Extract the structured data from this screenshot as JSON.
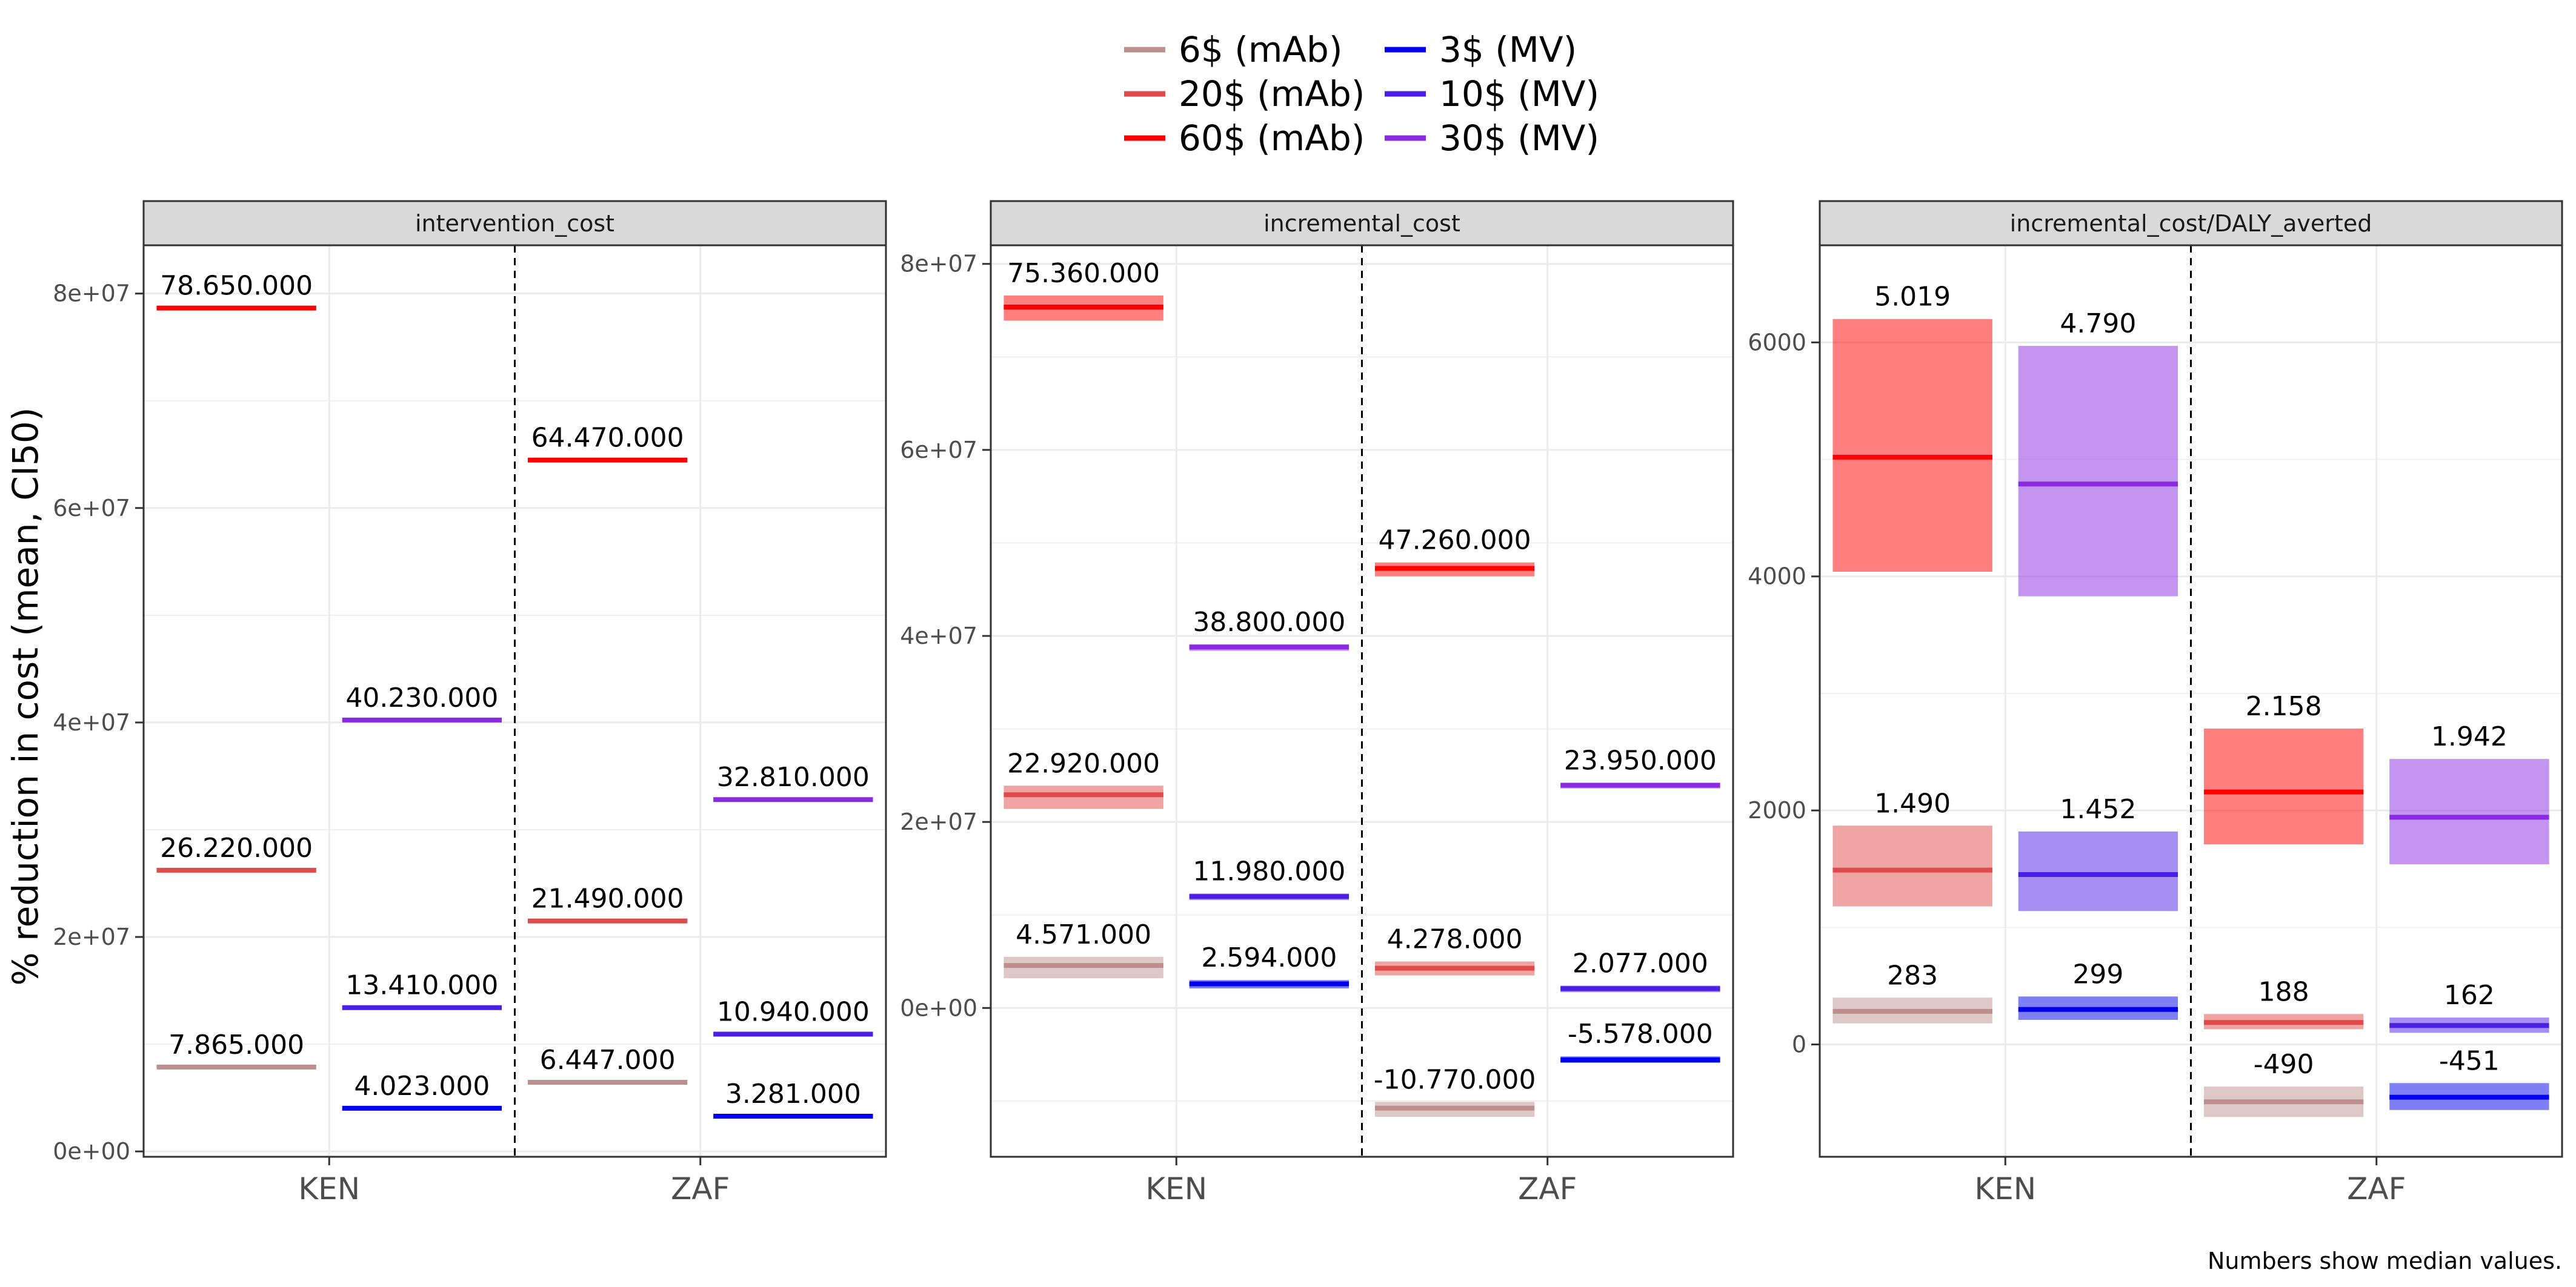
{
  "chart_data": {
    "type": "crossbar",
    "ylabel": "% reduction in cost (mean, CI50)",
    "caption": "Numbers show median values.",
    "categories": [
      "KEN",
      "ZAF"
    ],
    "legend": {
      "position": "top",
      "entries": [
        {
          "name": "6$ (mAb)",
          "color": "#bc8f8f"
        },
        {
          "name": "20$ (mAb)",
          "color": "#e04a4a"
        },
        {
          "name": "60$ (mAb)",
          "color": "#ff0000"
        },
        {
          "name": "3$ (MV)",
          "color": "#0000ee"
        },
        {
          "name": "10$ (MV)",
          "color": "#4b1ee6"
        },
        {
          "name": "30$ (MV)",
          "color": "#8a2be2"
        }
      ]
    },
    "panels": [
      {
        "title": "intervention_cost",
        "ylim": [
          -500000,
          84500000
        ],
        "yticks": [
          0,
          20000000,
          40000000,
          60000000,
          80000000
        ],
        "ytick_labels": [
          "0e+00",
          "2e+07",
          "4e+07",
          "6e+07",
          "8e+07"
        ],
        "bars": [
          {
            "category": "KEN",
            "group": "mAb",
            "series": "60$ (mAb)",
            "median": 78650000,
            "low": 78650000,
            "high": 78650000,
            "label": "78.650.000"
          },
          {
            "category": "KEN",
            "group": "mAb",
            "series": "20$ (mAb)",
            "median": 26220000,
            "low": 26220000,
            "high": 26220000,
            "label": "26.220.000"
          },
          {
            "category": "KEN",
            "group": "mAb",
            "series": "6$ (mAb)",
            "median": 7865000,
            "low": 7865000,
            "high": 7865000,
            "label": "7.865.000"
          },
          {
            "category": "KEN",
            "group": "MV",
            "series": "30$ (MV)",
            "median": 40230000,
            "low": 40230000,
            "high": 40230000,
            "label": "40.230.000"
          },
          {
            "category": "KEN",
            "group": "MV",
            "series": "10$ (MV)",
            "median": 13410000,
            "low": 13410000,
            "high": 13410000,
            "label": "13.410.000"
          },
          {
            "category": "KEN",
            "group": "MV",
            "series": "3$ (MV)",
            "median": 4023000,
            "low": 4023000,
            "high": 4023000,
            "label": "4.023.000"
          },
          {
            "category": "ZAF",
            "group": "mAb",
            "series": "60$ (mAb)",
            "median": 64470000,
            "low": 64470000,
            "high": 64470000,
            "label": "64.470.000"
          },
          {
            "category": "ZAF",
            "group": "mAb",
            "series": "20$ (mAb)",
            "median": 21490000,
            "low": 21490000,
            "high": 21490000,
            "label": "21.490.000"
          },
          {
            "category": "ZAF",
            "group": "mAb",
            "series": "6$ (mAb)",
            "median": 6447000,
            "low": 6447000,
            "high": 6447000,
            "label": "6.447.000"
          },
          {
            "category": "ZAF",
            "group": "MV",
            "series": "30$ (MV)",
            "median": 32810000,
            "low": 32810000,
            "high": 32810000,
            "label": "32.810.000"
          },
          {
            "category": "ZAF",
            "group": "MV",
            "series": "10$ (MV)",
            "median": 10940000,
            "low": 10940000,
            "high": 10940000,
            "label": "10.940.000"
          },
          {
            "category": "ZAF",
            "group": "MV",
            "series": "3$ (MV)",
            "median": 3281000,
            "low": 3281000,
            "high": 3281000,
            "label": "3.281.000"
          }
        ]
      },
      {
        "title": "incremental_cost",
        "ylim": [
          -16000000,
          82000000
        ],
        "yticks": [
          0,
          20000000,
          40000000,
          60000000,
          80000000
        ],
        "ytick_labels": [
          "0e+00",
          "2e+07",
          "4e+07",
          "6e+07",
          "8e+07"
        ],
        "bars": [
          {
            "category": "KEN",
            "group": "mAb",
            "series": "60$ (mAb)",
            "median": 75360000,
            "low": 73900000,
            "high": 76600000,
            "label": "75.360.000"
          },
          {
            "category": "KEN",
            "group": "mAb",
            "series": "20$ (mAb)",
            "median": 22920000,
            "low": 21400000,
            "high": 23900000,
            "label": "22.920.000"
          },
          {
            "category": "KEN",
            "group": "mAb",
            "series": "6$ (mAb)",
            "median": 4571000,
            "low": 3200000,
            "high": 5500000,
            "label": "4.571.000"
          },
          {
            "category": "KEN",
            "group": "MV",
            "series": "30$ (MV)",
            "median": 38800000,
            "low": 38400000,
            "high": 39100000,
            "label": "38.800.000"
          },
          {
            "category": "KEN",
            "group": "MV",
            "series": "10$ (MV)",
            "median": 11980000,
            "low": 11600000,
            "high": 12300000,
            "label": "11.980.000"
          },
          {
            "category": "KEN",
            "group": "MV",
            "series": "3$ (MV)",
            "median": 2594000,
            "low": 2100000,
            "high": 3000000,
            "label": "2.594.000"
          },
          {
            "category": "ZAF",
            "group": "mAb",
            "series": "60$ (mAb)",
            "median": 47260000,
            "low": 46400000,
            "high": 47900000,
            "label": "47.260.000"
          },
          {
            "category": "ZAF",
            "group": "mAb",
            "series": "20$ (mAb)",
            "median": 4278000,
            "low": 3500000,
            "high": 5000000,
            "label": "4.278.000"
          },
          {
            "category": "ZAF",
            "group": "mAb",
            "series": "6$ (mAb)",
            "median": -10770000,
            "low": -11700000,
            "high": -10100000,
            "label": "-10.770.000"
          },
          {
            "category": "ZAF",
            "group": "MV",
            "series": "30$ (MV)",
            "median": 23950000,
            "low": 23600000,
            "high": 24200000,
            "label": "23.950.000"
          },
          {
            "category": "ZAF",
            "group": "MV",
            "series": "10$ (MV)",
            "median": 2077000,
            "low": 1700000,
            "high": 2400000,
            "label": "2.077.000"
          },
          {
            "category": "ZAF",
            "group": "MV",
            "series": "3$ (MV)",
            "median": -5578000,
            "low": -5900000,
            "high": -5200000,
            "label": "-5.578.000"
          }
        ]
      },
      {
        "title": "incremental_cost/DALY_averted",
        "ylim": [
          -960,
          6830
        ],
        "yticks": [
          0,
          2000,
          4000,
          6000
        ],
        "ytick_labels": [
          "0",
          "2000",
          "4000",
          "6000"
        ],
        "bars": [
          {
            "category": "KEN",
            "group": "mAb",
            "series": "60$ (mAb)",
            "median": 5019,
            "low": 4040,
            "high": 6200,
            "label": "5.019"
          },
          {
            "category": "KEN",
            "group": "mAb",
            "series": "20$ (mAb)",
            "median": 1490,
            "low": 1180,
            "high": 1870,
            "label": "1.490"
          },
          {
            "category": "KEN",
            "group": "mAb",
            "series": "6$ (mAb)",
            "median": 283,
            "low": 180,
            "high": 400,
            "label": "283"
          },
          {
            "category": "KEN",
            "group": "MV",
            "series": "30$ (MV)",
            "median": 4790,
            "low": 3830,
            "high": 5970,
            "label": "4.790"
          },
          {
            "category": "KEN",
            "group": "MV",
            "series": "10$ (MV)",
            "median": 1452,
            "low": 1140,
            "high": 1820,
            "label": "1.452"
          },
          {
            "category": "KEN",
            "group": "MV",
            "series": "3$ (MV)",
            "median": 299,
            "low": 210,
            "high": 410,
            "label": "299"
          },
          {
            "category": "ZAF",
            "group": "mAb",
            "series": "60$ (mAb)",
            "median": 2158,
            "low": 1710,
            "high": 2700,
            "label": "2.158"
          },
          {
            "category": "ZAF",
            "group": "mAb",
            "series": "20$ (mAb)",
            "median": 188,
            "low": 130,
            "high": 260,
            "label": "188"
          },
          {
            "category": "ZAF",
            "group": "mAb",
            "series": "6$ (mAb)",
            "median": -490,
            "low": -620,
            "high": -360,
            "label": "-490"
          },
          {
            "category": "ZAF",
            "group": "MV",
            "series": "30$ (MV)",
            "median": 1942,
            "low": 1540,
            "high": 2440,
            "label": "1.942"
          },
          {
            "category": "ZAF",
            "group": "MV",
            "series": "10$ (MV)",
            "median": 162,
            "low": 100,
            "high": 230,
            "label": "162"
          },
          {
            "category": "ZAF",
            "group": "MV",
            "series": "3$ (MV)",
            "median": -451,
            "low": -560,
            "high": -330,
            "label": "-451"
          }
        ]
      }
    ]
  }
}
